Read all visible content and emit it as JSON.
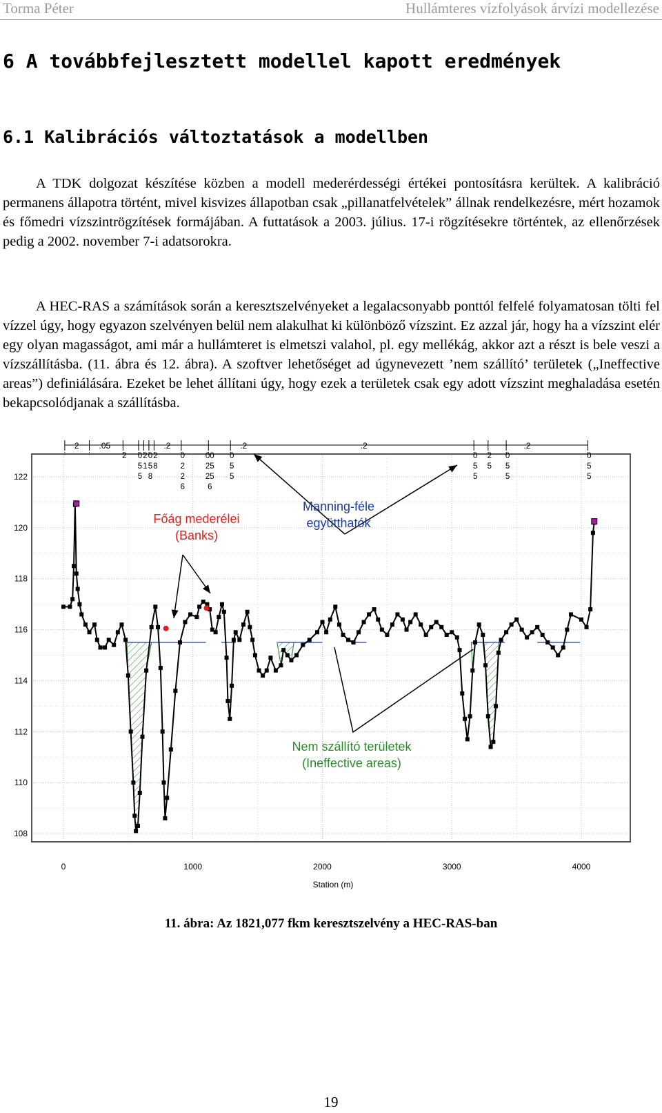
{
  "header": {
    "author": "Torma Péter",
    "title": "Hullámteres vízfolyások árvízi modellezése"
  },
  "section_title": "6 A továbbfejlesztett modellel kapott eredmények",
  "subsection_title": "6.1 Kalibrációs változtatások a modellben",
  "paragraphs": [
    "A TDK dolgozat készítése közben a modell mederérdességi értékei pontosításra kerültek. A kalibráció permanens állapotra történt, mivel kisvizes állapotban csak „pillanatfelvételek” állnak rendelkezésre, mért hozamok és főmedri vízszintrögzítések formájában. A futtatások a 2003. július. 17-i rögzítésekre történtek, az ellenőrzések pedig a 2002. november 7-i adatsorokra.",
    "A HEC-RAS a számítások során a keresztszelvényeket a legalacsonyabb ponttól felfelé folyamatosan tölti fel vízzel úgy, hogy egyazon szelvényen belül nem alakulhat ki különböző vízszint. Ez azzal jár, hogy ha a vízszint elér egy olyan magasságot, ami már a hullámteret is elmetszi valahol, pl. egy mellékág, akkor azt a részt is bele veszi a vízszállításba. (11. ábra és 12. ábra). A szoftver lehetőséget ad úgynevezett ’nem szállító’ területek („Ineffective areas”) definiálására. Ezeket be lehet állítani úgy, hogy ezek a területek csak egy adott vízszint meghaladása esetén bekapcsolódjanak a szállításba."
  ],
  "chart_data": {
    "type": "line",
    "xlabel": "Station (m)",
    "ylabel": "",
    "xlim": [
      0,
      4250
    ],
    "ylim": [
      107.6,
      123.2
    ],
    "x_ticks": [
      0,
      1000,
      2000,
      3000,
      4000
    ],
    "y_ticks": [
      108,
      110,
      112,
      114,
      116,
      118,
      120,
      122
    ],
    "grid": true,
    "water_level": 115.5,
    "colors": {
      "ground": "#000000",
      "water": "#1f3aa8",
      "ineffective": "#2e7d32",
      "bank": "#e02020",
      "end_marker": "#a020a0",
      "annotation_manning": "#1a3aa0",
      "annotation_banks": "#e02020",
      "annotation_ineffective": "#2e8b2e"
    },
    "ground_profile": [
      [
        0,
        116.9
      ],
      [
        50,
        116.9
      ],
      [
        70,
        117.2
      ],
      [
        80,
        118.5
      ],
      [
        90,
        120.9
      ],
      [
        100,
        118.2
      ],
      [
        110,
        117.6
      ],
      [
        125,
        117.0
      ],
      [
        140,
        116.6
      ],
      [
        170,
        116.2
      ],
      [
        200,
        115.9
      ],
      [
        240,
        116.2
      ],
      [
        260,
        115.6
      ],
      [
        285,
        115.3
      ],
      [
        320,
        115.3
      ],
      [
        350,
        115.6
      ],
      [
        390,
        115.4
      ],
      [
        420,
        115.9
      ],
      [
        450,
        116.2
      ],
      [
        480,
        115.6
      ],
      [
        500,
        114.2
      ],
      [
        520,
        112.0
      ],
      [
        540,
        110.0
      ],
      [
        550,
        108.7
      ],
      [
        560,
        108.1
      ],
      [
        575,
        108.3
      ],
      [
        590,
        109.6
      ],
      [
        610,
        111.8
      ],
      [
        640,
        114.4
      ],
      [
        680,
        116.1
      ],
      [
        710,
        116.9
      ],
      [
        730,
        116.1
      ],
      [
        750,
        114.5
      ],
      [
        765,
        112.0
      ],
      [
        775,
        110.0
      ],
      [
        785,
        108.6
      ],
      [
        800,
        109.4
      ],
      [
        830,
        111.3
      ],
      [
        865,
        113.6
      ],
      [
        900,
        115.5
      ],
      [
        940,
        116.3
      ],
      [
        980,
        116.6
      ],
      [
        1030,
        116.5
      ],
      [
        1050,
        116.9
      ],
      [
        1080,
        117.1
      ],
      [
        1110,
        117.0
      ],
      [
        1130,
        116.8
      ],
      [
        1150,
        116.0
      ],
      [
        1175,
        115.9
      ],
      [
        1200,
        116.5
      ],
      [
        1225,
        117.0
      ],
      [
        1240,
        116.7
      ],
      [
        1260,
        114.9
      ],
      [
        1270,
        113.2
      ],
      [
        1285,
        112.5
      ],
      [
        1300,
        113.8
      ],
      [
        1315,
        115.6
      ],
      [
        1330,
        115.9
      ],
      [
        1360,
        115.6
      ],
      [
        1390,
        116.2
      ],
      [
        1420,
        116.7
      ],
      [
        1440,
        116.1
      ],
      [
        1460,
        115.6
      ],
      [
        1480,
        115.0
      ],
      [
        1510,
        114.4
      ],
      [
        1540,
        114.2
      ],
      [
        1570,
        114.4
      ],
      [
        1600,
        114.9
      ],
      [
        1640,
        114.4
      ],
      [
        1680,
        114.6
      ],
      [
        1700,
        115.2
      ],
      [
        1730,
        115.0
      ],
      [
        1760,
        114.8
      ],
      [
        1800,
        115.0
      ],
      [
        1850,
        115.4
      ],
      [
        1900,
        115.6
      ],
      [
        1960,
        115.9
      ],
      [
        2000,
        116.3
      ],
      [
        2030,
        115.9
      ],
      [
        2060,
        116.4
      ],
      [
        2100,
        116.9
      ],
      [
        2130,
        116.2
      ],
      [
        2160,
        115.8
      ],
      [
        2200,
        115.6
      ],
      [
        2240,
        115.5
      ],
      [
        2280,
        115.9
      ],
      [
        2320,
        116.3
      ],
      [
        2360,
        116.6
      ],
      [
        2400,
        116.8
      ],
      [
        2430,
        116.4
      ],
      [
        2460,
        116.0
      ],
      [
        2500,
        115.8
      ],
      [
        2540,
        116.2
      ],
      [
        2580,
        116.6
      ],
      [
        2620,
        116.4
      ],
      [
        2650,
        116.0
      ],
      [
        2680,
        116.3
      ],
      [
        2720,
        116.6
      ],
      [
        2760,
        116.2
      ],
      [
        2800,
        115.8
      ],
      [
        2840,
        116.1
      ],
      [
        2880,
        116.3
      ],
      [
        2920,
        116.1
      ],
      [
        2960,
        115.8
      ],
      [
        3000,
        115.9
      ],
      [
        3040,
        115.7
      ],
      [
        3060,
        115.2
      ],
      [
        3080,
        113.5
      ],
      [
        3100,
        112.5
      ],
      [
        3120,
        111.7
      ],
      [
        3140,
        112.6
      ],
      [
        3160,
        114.4
      ],
      [
        3180,
        115.5
      ],
      [
        3210,
        116.2
      ],
      [
        3240,
        115.8
      ],
      [
        3260,
        114.6
      ],
      [
        3280,
        112.6
      ],
      [
        3300,
        111.4
      ],
      [
        3320,
        111.6
      ],
      [
        3340,
        113.0
      ],
      [
        3360,
        115.1
      ],
      [
        3380,
        115.6
      ],
      [
        3420,
        115.9
      ],
      [
        3460,
        116.2
      ],
      [
        3500,
        116.4
      ],
      [
        3540,
        116.0
      ],
      [
        3580,
        115.7
      ],
      [
        3620,
        115.9
      ],
      [
        3660,
        116.1
      ],
      [
        3700,
        115.8
      ],
      [
        3740,
        115.5
      ],
      [
        3780,
        115.3
      ],
      [
        3820,
        115.0
      ],
      [
        3860,
        115.3
      ],
      [
        3890,
        116.0
      ],
      [
        3920,
        116.6
      ],
      [
        4000,
        116.4
      ],
      [
        4040,
        116.1
      ],
      [
        4070,
        116.8
      ],
      [
        4090,
        119.8
      ],
      [
        4100,
        120.2
      ]
    ],
    "ineffective_areas": [
      [
        490,
        690
      ],
      [
        1650,
        1780
      ],
      [
        3150,
        3360
      ]
    ],
    "water_segments": [
      [
        490,
        1100
      ],
      [
        1220,
        1330
      ],
      [
        1660,
        2000
      ],
      [
        2220,
        2340
      ],
      [
        3150,
        3410
      ],
      [
        3660,
        3990
      ]
    ],
    "bank_stations": [
      [
        792,
        116.05
      ],
      [
        1105,
        116.85
      ]
    ],
    "end_points": [
      [
        100,
        120.95
      ],
      [
        4100,
        120.25
      ]
    ],
    "manning_break_stations": [
      10,
      200,
      460,
      580,
      620,
      660,
      700,
      910,
      1120,
      1290,
      3170,
      3280,
      3420,
      4050
    ],
    "manning_top_labels": [
      {
        "station": 10,
        "label": "2"
      },
      {
        "station": 200,
        "label": ".05"
      },
      {
        "station": 460,
        "label": ""
      },
      {
        "station": 700,
        "label": ".2"
      },
      {
        "station": 1290,
        "label": ".2"
      },
      {
        "station": 2220,
        "label": ".2"
      },
      {
        "station": 3480,
        "label": ".2"
      }
    ],
    "manning_columns": [
      {
        "station": 460,
        "digits": [
          "2",
          ""
        ]
      },
      {
        "station": 580,
        "digits": [
          "0",
          "5",
          "5"
        ]
      },
      {
        "station": 620,
        "digits": [
          "2",
          "1",
          ""
        ]
      },
      {
        "station": 660,
        "digits": [
          "0",
          "5",
          "8"
        ]
      },
      {
        "station": 700,
        "digits": [
          "2",
          "8",
          ""
        ]
      },
      {
        "station": 910,
        "digits": [
          "0",
          "2",
          "2",
          "6"
        ]
      },
      {
        "station": 1120,
        "digits": [
          "00",
          "25",
          "25",
          "6"
        ]
      },
      {
        "station": 1290,
        "digits": [
          "0",
          "5",
          "5"
        ]
      },
      {
        "station": 3170,
        "digits": [
          "0",
          "5",
          "5"
        ]
      },
      {
        "station": 3280,
        "digits": [
          "2",
          "5",
          ""
        ]
      },
      {
        "station": 3420,
        "digits": [
          "0",
          "5",
          "5"
        ]
      },
      {
        "station": 4050,
        "digits": [
          "0",
          "5",
          "5"
        ]
      }
    ],
    "annotations": {
      "banks": [
        "Főág mederélei",
        "(Banks)"
      ],
      "manning": [
        "Manning-féle",
        "együtthatók"
      ],
      "ineffective": [
        "Nem szállító területek",
        "(Ineffective areas)"
      ]
    }
  },
  "caption": "11. ábra: Az 1821,077 fkm keresztszelvény a HEC-RAS-ban",
  "page_number": "19"
}
